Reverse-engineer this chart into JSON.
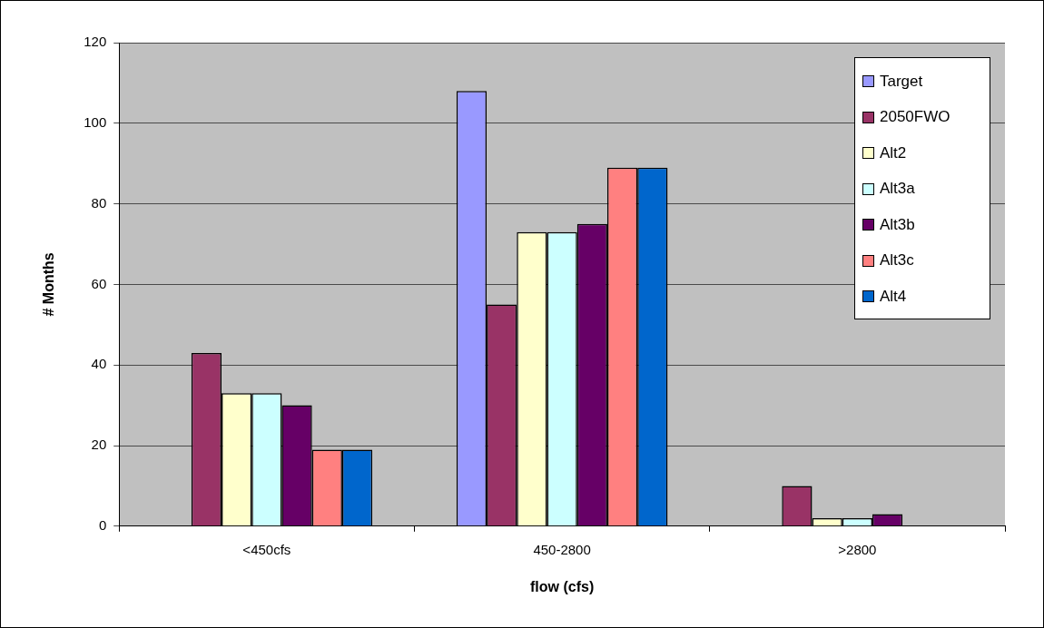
{
  "chart_data": {
    "type": "bar",
    "xlabel": "flow (cfs)",
    "ylabel": "# Months",
    "categories": [
      "<450cfs",
      "450-2800",
      ">2800"
    ],
    "series": [
      {
        "name": "Target",
        "color": "#9999ff",
        "values": [
          0,
          108,
          0
        ]
      },
      {
        "name": "2050FWO",
        "color": "#993366",
        "values": [
          43,
          55,
          10
        ]
      },
      {
        "name": "Alt2",
        "color": "#ffffcc",
        "values": [
          33,
          73,
          2
        ]
      },
      {
        "name": "Alt3a",
        "color": "#ccffff",
        "values": [
          33,
          73,
          2
        ]
      },
      {
        "name": "Alt3b",
        "color": "#660066",
        "values": [
          30,
          75,
          3
        ]
      },
      {
        "name": "Alt3c",
        "color": "#ff8080",
        "values": [
          19,
          89,
          0
        ]
      },
      {
        "name": "Alt4",
        "color": "#0066cc",
        "values": [
          19,
          89,
          0
        ]
      }
    ],
    "ylim": [
      0,
      120
    ],
    "yticks": [
      0,
      20,
      40,
      60,
      80,
      100,
      120
    ],
    "grid": "y",
    "legend": "top right"
  }
}
